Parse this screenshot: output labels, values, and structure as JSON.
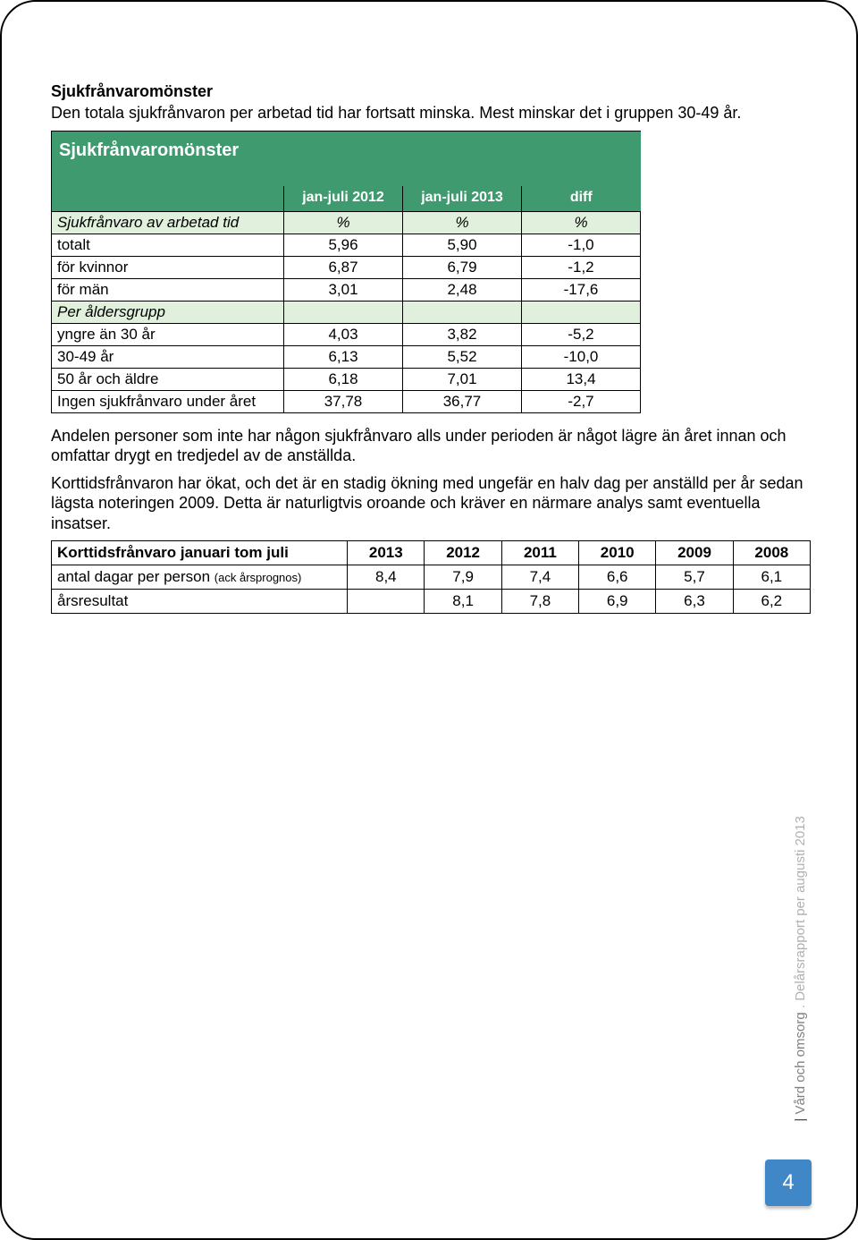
{
  "intro": {
    "heading": "Sjukfrånvaromönster",
    "line": "Den totala sjukfrånvaron per arbetad tid har fortsatt minska. Mest minskar det i gruppen 30-49 år."
  },
  "table1": {
    "title": "Sjukfrånvaromönster",
    "col_headers": [
      "jan-juli 2012",
      "jan-juli 2013",
      "diff"
    ],
    "section1_label": "Sjukfrånvaro av arbetad tid",
    "pct": "%",
    "rows_a": [
      {
        "label": "totalt",
        "v1": "5,96",
        "v2": "5,90",
        "d": "-1,0"
      },
      {
        "label": "för kvinnor",
        "v1": "6,87",
        "v2": "6,79",
        "d": "-1,2"
      },
      {
        "label": "för män",
        "v1": "3,01",
        "v2": "2,48",
        "d": "-17,6"
      }
    ],
    "section2_label": "Per åldersgrupp",
    "rows_b": [
      {
        "label": "yngre än 30 år",
        "v1": "4,03",
        "v2": "3,82",
        "d": "-5,2"
      },
      {
        "label": "30-49 år",
        "v1": "6,13",
        "v2": "5,52",
        "d": "-10,0"
      },
      {
        "label": "50 år och äldre",
        "v1": "6,18",
        "v2": "7,01",
        "d": "13,4"
      },
      {
        "label": "Ingen sjukfrånvaro under året",
        "v1": "37,78",
        "v2": "36,77",
        "d": "-2,7"
      }
    ],
    "colors": {
      "header_bg": "#3f9b6f",
      "header_text": "#ffffff",
      "section_bg": "#e0f0dc",
      "border": "#000000"
    }
  },
  "para2": [
    "Andelen personer som inte har någon sjukfrånvaro alls under perioden är något lägre än året innan och omfattar drygt en tredjedel av de anställda.",
    "Korttidsfrånvaron har ökat, och det är en stadig ökning med ungefär en halv dag per anställd per år sedan lägsta noteringen 2009. Detta är naturligtvis oroande och kräver en närmare analys samt eventuella insatser."
  ],
  "table2": {
    "header_label": "Korttidsfrånvaro januari tom juli",
    "years": [
      "2013",
      "2012",
      "2011",
      "2010",
      "2009",
      "2008"
    ],
    "rows": [
      {
        "label": "antal dagar per person ",
        "sub": "(ack årsprognos)",
        "vals": [
          "8,4",
          "7,9",
          "7,4",
          "6,6",
          "5,7",
          "6,1"
        ]
      },
      {
        "label": "årsresultat",
        "sub": "",
        "vals": [
          "",
          "8,1",
          "7,8",
          "6,9",
          "6,3",
          "6,2"
        ]
      }
    ]
  },
  "footer": {
    "side_prefix": "| ",
    "side_bold": "Vård och omsorg",
    "side_sep": " . ",
    "side_rest": "Delårsrapport per augusti 2013",
    "page_num": "4"
  }
}
